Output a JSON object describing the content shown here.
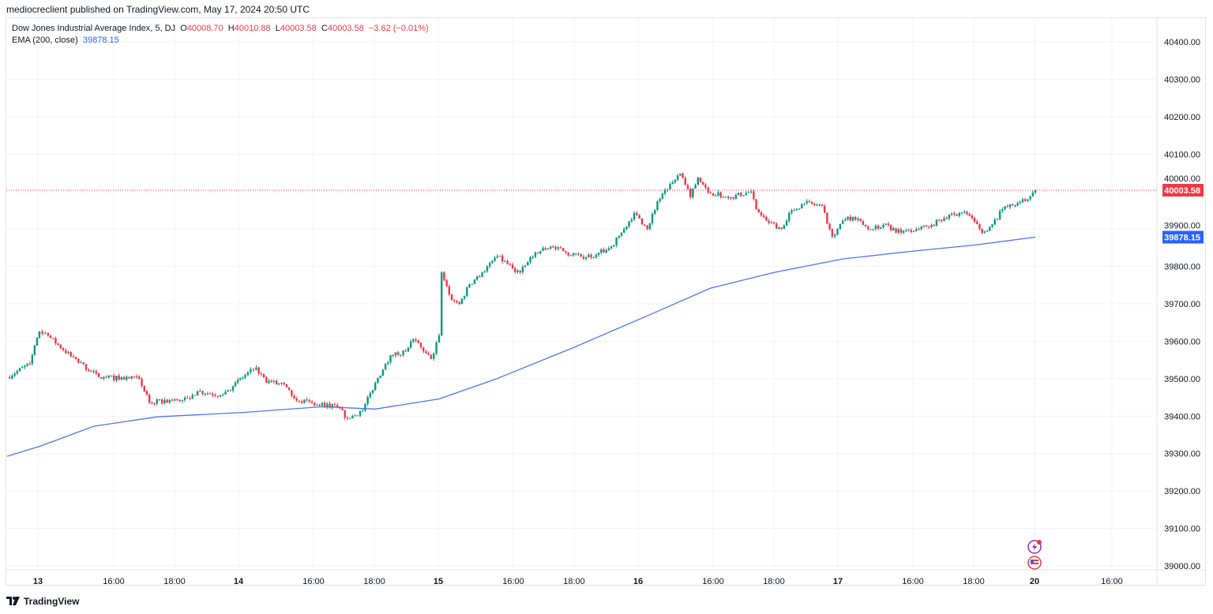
{
  "header": {
    "published": "mediocreclient published on TradingView.com, May 17, 2024 20:50 UTC"
  },
  "legend": {
    "symbol": "Dow Jones Industrial Average Index, 5, DJ",
    "o_label": "O",
    "o": "40008.70",
    "h_label": "H",
    "h": "40010.88",
    "l_label": "L",
    "l": "40003.58",
    "c_label": "C",
    "c": "40003.58",
    "change": "−3.62 (−0.01%)",
    "ema_label": "EMA (200, close)",
    "ema_value": "39878.15"
  },
  "footer": {
    "brand": "TradingView"
  },
  "colors": {
    "up": "#089981",
    "down": "#f23645",
    "ema": "#2962ff",
    "grid": "#f0f3fa",
    "last_price": "#f23645",
    "ema_label_bg": "#2962ff"
  },
  "icons": [
    "lightning-events-icon",
    "us-flag-economic-icon",
    "tradingview-logo-icon"
  ],
  "chart_data": {
    "type": "candlestick",
    "interval": "5",
    "ylim": [
      38980,
      40440
    ],
    "yticks": [
      "40400.00",
      "40300.00",
      "40200.00",
      "40100.00",
      "40000.00",
      "39900.00",
      "39800.00",
      "39700.00",
      "39600.00",
      "39500.00",
      "39400.00",
      "39300.00",
      "39200.00",
      "39100.00",
      "39000.00"
    ],
    "xticks": [
      "13",
      "16:00",
      "18:00",
      "14",
      "16:00",
      "18:00",
      "15",
      "16:00",
      "18:00",
      "16",
      "16:00",
      "18:00",
      "17",
      "16:00",
      "18:00",
      "20",
      "16:00"
    ],
    "last_price_label": "40003.58",
    "ema_price_label": "39878.15",
    "grid": true,
    "price_path": [
      [
        "10 19:05",
        39504
      ],
      [
        "10 19:50",
        39540
      ],
      [
        "13 13:33",
        39626
      ],
      [
        "13 13:50",
        39615
      ],
      [
        "13 14:35",
        39560
      ],
      [
        "13 15:30",
        39504
      ],
      [
        "13 16:50",
        39500
      ],
      [
        "13 17:10",
        39436
      ],
      [
        "13 18:30",
        39446
      ],
      [
        "13 18:45",
        39467
      ],
      [
        "13 19:30",
        39456
      ],
      [
        "13 19:55",
        39480
      ],
      [
        "14 13:43",
        39510
      ],
      [
        "14 14:05",
        39530
      ],
      [
        "14 14:25",
        39489
      ],
      [
        "14 14:55",
        39489
      ],
      [
        "14 15:20",
        39447
      ],
      [
        "14 15:55",
        39436
      ],
      [
        "14 16:45",
        39425
      ],
      [
        "14 17:05",
        39394
      ],
      [
        "14 17:35",
        39415
      ],
      [
        "14 18:00",
        39489
      ],
      [
        "14 18:30",
        39563
      ],
      [
        "14 19:00",
        39573
      ],
      [
        "14 19:15",
        39605
      ],
      [
        "14 19:35",
        39573
      ],
      [
        "14 19:50",
        39553
      ],
      [
        "15 13:30",
        39616
      ],
      [
        "15 13:35",
        39784
      ],
      [
        "15 13:55",
        39710
      ],
      [
        "15 14:10",
        39700
      ],
      [
        "15 14:30",
        39752
      ],
      [
        "15 14:55",
        39784
      ],
      [
        "15 15:25",
        39827
      ],
      [
        "15 15:55",
        39795
      ],
      [
        "15 16:10",
        39784
      ],
      [
        "15 16:40",
        39837
      ],
      [
        "15 17:10",
        39853
      ],
      [
        "15 17:40",
        39837
      ],
      [
        "15 18:10",
        39826
      ],
      [
        "15 18:40",
        39831
      ],
      [
        "15 19:10",
        39853
      ],
      [
        "15 19:35",
        39900
      ],
      [
        "15 19:55",
        39943
      ],
      [
        "16 13:45",
        39900
      ],
      [
        "16 14:05",
        39974
      ],
      [
        "16 14:25",
        40006
      ],
      [
        "16 14:50",
        40048
      ],
      [
        "16 15:10",
        39985
      ],
      [
        "16 15:25",
        40037
      ],
      [
        "16 15:50",
        39995
      ],
      [
        "16 16:30",
        39985
      ],
      [
        "16 17:10",
        40000
      ],
      [
        "16 17:20",
        39953
      ],
      [
        "16 17:40",
        39922
      ],
      [
        "16 18:10",
        39900
      ],
      [
        "16 18:25",
        39943
      ],
      [
        "16 18:55",
        39969
      ],
      [
        "16 19:30",
        39961
      ],
      [
        "16 19:50",
        39880
      ],
      [
        "17 13:35",
        39922
      ],
      [
        "17 13:55",
        39932
      ],
      [
        "17 14:25",
        39900
      ],
      [
        "17 14:55",
        39911
      ],
      [
        "17 15:30",
        39890
      ],
      [
        "17 16:00",
        39900
      ],
      [
        "17 16:30",
        39911
      ],
      [
        "17 17:05",
        39938
      ],
      [
        "17 17:35",
        39946
      ],
      [
        "17 17:55",
        39920
      ],
      [
        "17 18:10",
        39890
      ],
      [
        "17 18:30",
        39912
      ],
      [
        "17 18:50",
        39953
      ],
      [
        "17 19:20",
        39969
      ],
      [
        "17 19:35",
        39975
      ],
      [
        "17 19:55",
        40003.58
      ]
    ],
    "ema_path": [
      [
        "10 19:05",
        39293
      ],
      [
        "13 13:35",
        39320
      ],
      [
        "13 15:20",
        39373
      ],
      [
        "13 17:25",
        39398
      ],
      [
        "14 13:40",
        39410
      ],
      [
        "14 16:15",
        39425
      ],
      [
        "14 18:00",
        39419
      ],
      [
        "15 13:30",
        39446
      ],
      [
        "15 15:20",
        39498
      ],
      [
        "15 17:55",
        39583
      ],
      [
        "16 13:45",
        39668
      ],
      [
        "16 15:50",
        39742
      ],
      [
        "16 17:55",
        39784
      ],
      [
        "17 13:35",
        39820
      ],
      [
        "17 15:55",
        39841
      ],
      [
        "17 17:55",
        39857
      ],
      [
        "17 19:55",
        39878.15
      ]
    ]
  }
}
